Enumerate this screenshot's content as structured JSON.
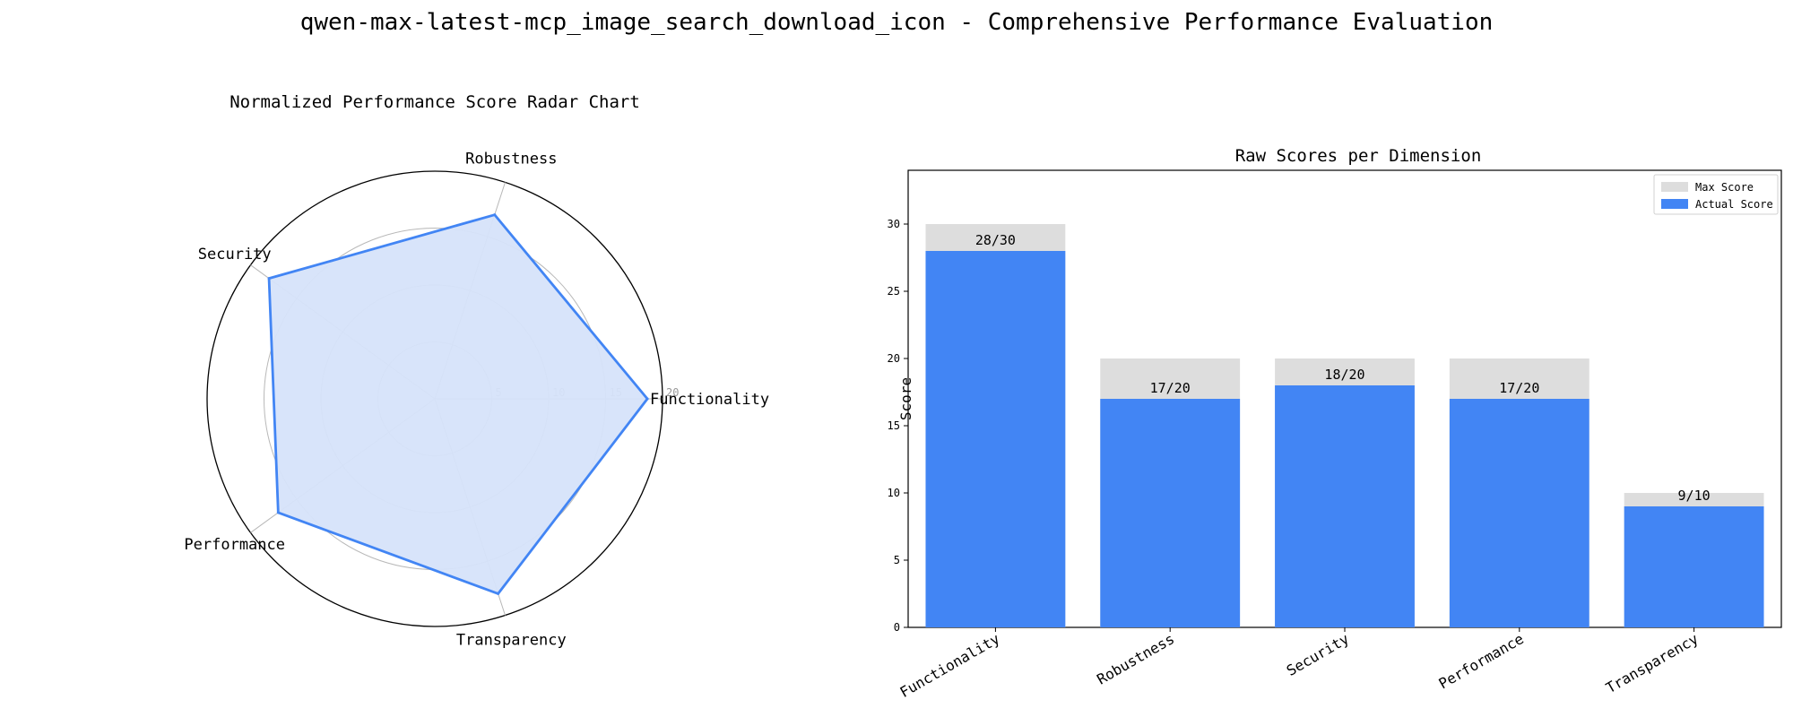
{
  "figure_title": "qwen-max-latest-mcp_image_search_download_icon - Comprehensive Performance Evaluation",
  "colors": {
    "actual": "#4285f4",
    "max": "#dddddd",
    "radar_line": "#4285f4",
    "radar_fill": "#d6e3fa",
    "grid": "#b8b8b8"
  },
  "chart_data": [
    {
      "type": "radar",
      "title": "Normalized Performance Score Radar Chart",
      "categories": [
        "Functionality",
        "Robustness",
        "Security",
        "Performance",
        "Transparency"
      ],
      "values": [
        18.67,
        17,
        18,
        17,
        18
      ],
      "rlim": [
        0,
        20
      ],
      "rticks": [
        "5",
        "10",
        "15",
        "20"
      ],
      "grid": true
    },
    {
      "type": "bar",
      "title": "Raw Scores per Dimension",
      "categories": [
        "Functionality",
        "Robustness",
        "Security",
        "Performance",
        "Transparency"
      ],
      "series": [
        {
          "name": "Max Score",
          "values": [
            30,
            20,
            20,
            20,
            10
          ]
        },
        {
          "name": "Actual Score",
          "values": [
            28,
            17,
            18,
            17,
            9
          ]
        }
      ],
      "bar_labels": [
        "28/30",
        "17/20",
        "18/20",
        "17/20",
        "9/10"
      ],
      "ylabel": "Score",
      "ylim": [
        0,
        34
      ],
      "yticks": [
        "0",
        "5",
        "10",
        "15",
        "20",
        "25",
        "30"
      ],
      "legend": "top-right",
      "grid": false
    }
  ]
}
